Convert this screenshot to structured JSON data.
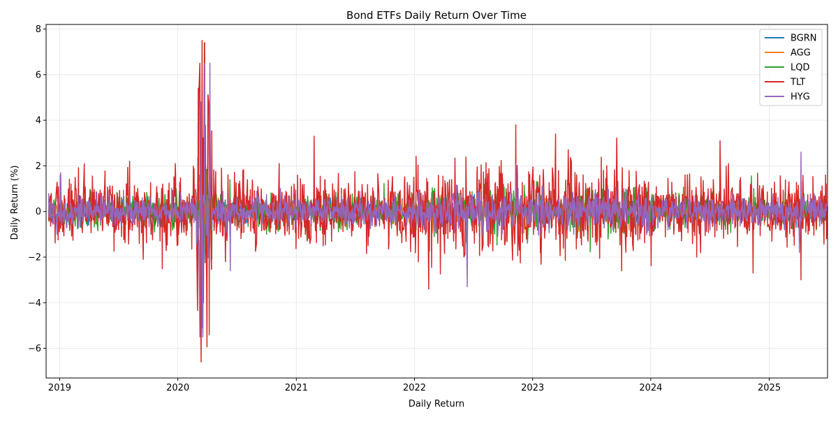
{
  "chart_data": {
    "type": "line",
    "title": "Bond ETFs Daily Return Over Time",
    "xlabel": "Daily Return",
    "ylabel": "Daily Return (%)",
    "x_range": [
      "2018-11-20",
      "2025-06-30"
    ],
    "ylim": [
      -7.3,
      8.2
    ],
    "grid": true,
    "legend_position": "top-right",
    "x_ticks": [
      {
        "date": "2019-01-01",
        "label": "2019"
      },
      {
        "date": "2020-01-01",
        "label": "2020"
      },
      {
        "date": "2021-01-01",
        "label": "2021"
      },
      {
        "date": "2022-01-01",
        "label": "2022"
      },
      {
        "date": "2023-01-01",
        "label": "2023"
      },
      {
        "date": "2024-01-01",
        "label": "2024"
      },
      {
        "date": "2025-01-01",
        "label": "2025"
      }
    ],
    "y_ticks": [
      {
        "value": -6,
        "label": "−6"
      },
      {
        "value": -4,
        "label": "−4"
      },
      {
        "value": -2,
        "label": "−2"
      },
      {
        "value": 0,
        "label": "0"
      },
      {
        "value": 2,
        "label": "2"
      },
      {
        "value": 4,
        "label": "4"
      },
      {
        "value": 6,
        "label": "6"
      },
      {
        "value": 8,
        "label": "8"
      }
    ],
    "series": [
      {
        "name": "BGRN",
        "color": "#1f77b4",
        "start": "2018-11-28",
        "end": "2025-06-30",
        "points": [
          [
            "2018-11-28",
            0.1
          ],
          [
            "2019-06-01",
            0.2
          ],
          [
            "2020-03-09",
            1.6
          ],
          [
            "2020-03-12",
            -2.4
          ],
          [
            "2020-03-16",
            2.8
          ],
          [
            "2020-03-19",
            -2.9
          ],
          [
            "2020-03-24",
            2.1
          ],
          [
            "2021-03-01",
            -0.5
          ],
          [
            "2022-03-07",
            -0.8
          ],
          [
            "2022-06-13",
            -1.2
          ],
          [
            "2022-11-10",
            1.5
          ],
          [
            "2023-10-03",
            -0.8
          ],
          [
            "2025-04-09",
            -0.9
          ],
          [
            "2025-06-30",
            0.1
          ]
        ]
      },
      {
        "name": "AGG",
        "color": "#ff7f0e",
        "start": "2018-11-28",
        "end": "2025-06-30",
        "points": [
          [
            "2018-11-28",
            0.1
          ],
          [
            "2019-08-05",
            0.4
          ],
          [
            "2020-03-09",
            1.3
          ],
          [
            "2020-03-12",
            -1.8
          ],
          [
            "2020-03-16",
            2.6
          ],
          [
            "2020-03-19",
            -3.2
          ],
          [
            "2020-03-24",
            2.8
          ],
          [
            "2021-03-01",
            -0.6
          ],
          [
            "2022-03-07",
            -0.9
          ],
          [
            "2022-06-13",
            -1.4
          ],
          [
            "2022-11-10",
            1.6
          ],
          [
            "2023-10-03",
            -0.9
          ],
          [
            "2025-04-09",
            -0.8
          ],
          [
            "2025-06-30",
            0.1
          ]
        ]
      },
      {
        "name": "LQD",
        "color": "#2ca02c",
        "start": "2018-11-28",
        "end": "2025-06-30",
        "points": [
          [
            "2018-11-28",
            0.1
          ],
          [
            "2020-03-12",
            -4.6
          ],
          [
            "2020-03-16",
            4.1
          ],
          [
            "2020-03-18",
            -5.0
          ],
          [
            "2020-03-23",
            7.4
          ],
          [
            "2020-03-24",
            4.6
          ],
          [
            "2020-06-10",
            1.4
          ],
          [
            "2022-04-20",
            -0.9
          ],
          [
            "2022-06-13",
            -1.5
          ],
          [
            "2022-11-10",
            2.2
          ],
          [
            "2023-10-03",
            -1.2
          ],
          [
            "2025-04-09",
            -1.6
          ],
          [
            "2025-06-30",
            0.1
          ]
        ]
      },
      {
        "name": "TLT",
        "color": "#d62728",
        "start": "2018-11-28",
        "end": "2025-06-30",
        "points": [
          [
            "2018-11-28",
            -0.4
          ],
          [
            "2019-01-03",
            1.6
          ],
          [
            "2019-08-05",
            2.2
          ],
          [
            "2019-09-16",
            -2.1
          ],
          [
            "2019-12-24",
            2.1
          ],
          [
            "2020-03-06",
            5.2
          ],
          [
            "2020-03-09",
            6.5
          ],
          [
            "2020-03-12",
            -5.1
          ],
          [
            "2020-03-13",
            -6.6
          ],
          [
            "2020-03-16",
            7.5
          ],
          [
            "2020-03-18",
            -5.3
          ],
          [
            "2020-03-23",
            6.3
          ],
          [
            "2020-03-24",
            7.4
          ],
          [
            "2020-05-27",
            -2.2
          ],
          [
            "2020-11-09",
            2.1
          ],
          [
            "2021-02-25",
            3.3
          ],
          [
            "2022-02-14",
            -3.4
          ],
          [
            "2022-06-13",
            -2.1
          ],
          [
            "2022-11-10",
            3.8
          ],
          [
            "2023-03-13",
            3.4
          ],
          [
            "2023-10-03",
            -2.6
          ],
          [
            "2024-08-02",
            3.1
          ],
          [
            "2024-11-12",
            -2.7
          ],
          [
            "2025-04-09",
            -3.0
          ],
          [
            "2025-06-30",
            0.2
          ]
        ]
      },
      {
        "name": "HYG",
        "color": "#9467bd",
        "start": "2018-11-28",
        "end": "2025-06-30",
        "points": [
          [
            "2018-11-28",
            0.8
          ],
          [
            "2018-12-24",
            -1.0
          ],
          [
            "2019-01-04",
            1.7
          ],
          [
            "2020-02-28",
            -1.4
          ],
          [
            "2020-03-09",
            -5.5
          ],
          [
            "2020-03-13",
            4.8
          ],
          [
            "2020-03-16",
            -5.1
          ],
          [
            "2020-03-18",
            -5.5
          ],
          [
            "2020-03-24",
            6.5
          ],
          [
            "2020-04-09",
            6.5
          ],
          [
            "2020-06-11",
            -2.6
          ],
          [
            "2022-06-13",
            -3.3
          ],
          [
            "2022-11-10",
            2.1
          ],
          [
            "2025-04-04",
            -1.8
          ],
          [
            "2025-04-09",
            2.6
          ],
          [
            "2025-06-30",
            0.2
          ]
        ]
      }
    ]
  }
}
